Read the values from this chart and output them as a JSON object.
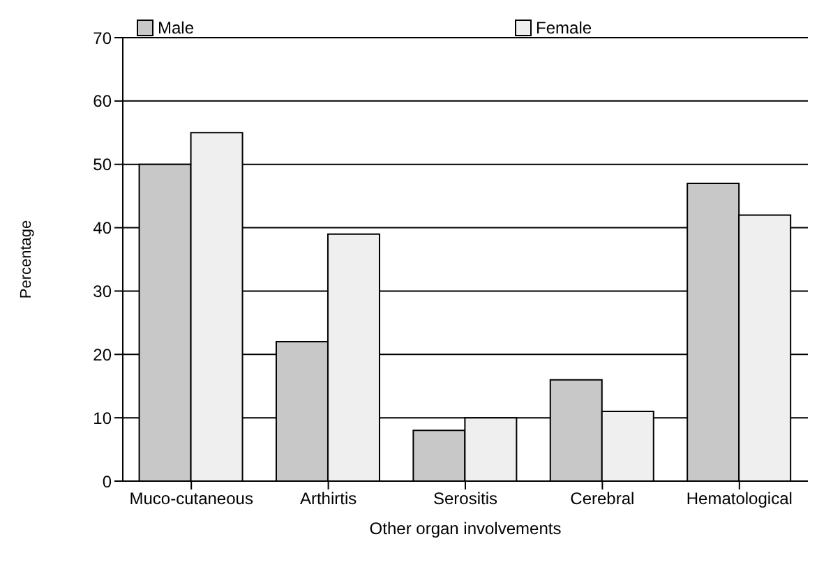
{
  "chart_data": {
    "type": "bar",
    "xlabel": "Other organ involvements",
    "ylabel": "Percentage",
    "categories": [
      "Muco-cutaneous",
      "Arthirtis",
      "Serositis",
      "Cerebral",
      "Hematological"
    ],
    "series": [
      {
        "name": "Male",
        "color": "#c8c8c8",
        "values": [
          50,
          22,
          8,
          16,
          47
        ]
      },
      {
        "name": "Female",
        "color": "#efefef",
        "values": [
          55,
          39,
          10,
          11,
          42
        ]
      }
    ],
    "ylim": [
      0,
      70
    ],
    "yticks": [
      0,
      10,
      20,
      30,
      40,
      50,
      60,
      70
    ],
    "grid": "y",
    "legend": "top"
  }
}
